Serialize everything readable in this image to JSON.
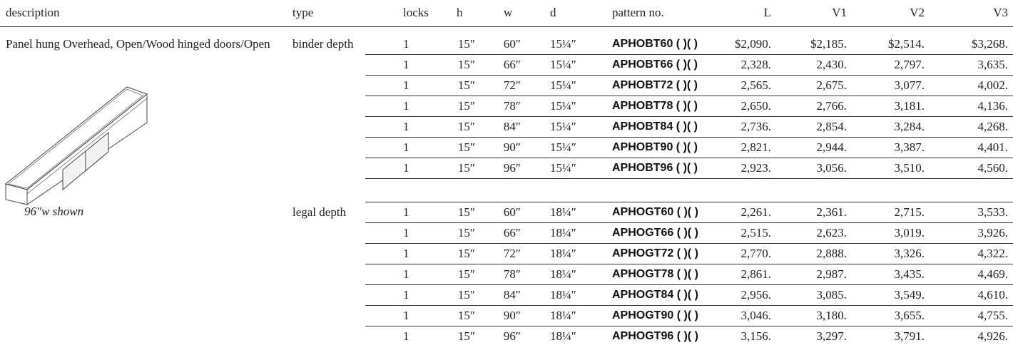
{
  "table": {
    "columns": [
      "description",
      "type",
      "locks",
      "h",
      "w",
      "d",
      "pattern no.",
      "L",
      "V1",
      "V2",
      "V3"
    ],
    "description": "Panel hung Overhead, Open/Wood hinged doors/Open",
    "caption": "96″w shown",
    "groups": [
      {
        "type": "binder depth",
        "rows": [
          [
            "1",
            "15″",
            "60″",
            "15¼″",
            "APHOBT60 ( )( )",
            "$2,090.",
            "$2,185.",
            "$2,514.",
            "$3,268."
          ],
          [
            "1",
            "15″",
            "66″",
            "15¼″",
            "APHOBT66 ( )( )",
            "2,328.",
            "2,430.",
            "2,797.",
            "3,635."
          ],
          [
            "1",
            "15″",
            "72″",
            "15¼″",
            "APHOBT72 ( )( )",
            "2,565.",
            "2,675.",
            "3,077.",
            "4,002."
          ],
          [
            "1",
            "15″",
            "78″",
            "15¼″",
            "APHOBT78 ( )( )",
            "2,650.",
            "2,766.",
            "3,181.",
            "4,136."
          ],
          [
            "1",
            "15″",
            "84″",
            "15¼″",
            "APHOBT84 ( )( )",
            "2,736.",
            "2,854.",
            "3,284.",
            "4,268."
          ],
          [
            "1",
            "15″",
            "90″",
            "15¼″",
            "APHOBT90 ( )( )",
            "2,821.",
            "2,944.",
            "3,387.",
            "4,401."
          ],
          [
            "1",
            "15″",
            "96″",
            "15¼″",
            "APHOBT96 ( )( )",
            "2,923.",
            "3,056.",
            "3,510.",
            "4,560."
          ]
        ]
      },
      {
        "type": "legal depth",
        "rows": [
          [
            "1",
            "15″",
            "60″",
            "18¼″",
            "APHOGT60 ( )( )",
            "2,261.",
            "2,361.",
            "2,715.",
            "3,533."
          ],
          [
            "1",
            "15″",
            "66″",
            "18¼″",
            "APHOGT66 ( )( )",
            "2,515.",
            "2,623.",
            "3,019.",
            "3,926."
          ],
          [
            "1",
            "15″",
            "72″",
            "18¼″",
            "APHOGT72 ( )( )",
            "2,770.",
            "2,888.",
            "3,326.",
            "4,322."
          ],
          [
            "1",
            "15″",
            "78″",
            "18¼″",
            "APHOGT78 ( )( )",
            "2,861.",
            "2,987.",
            "3,435.",
            "4,469."
          ],
          [
            "1",
            "15″",
            "84″",
            "18¼″",
            "APHOGT84 ( )( )",
            "2,956.",
            "3,085.",
            "3,549.",
            "4,610."
          ],
          [
            "1",
            "15″",
            "90″",
            "18¼″",
            "APHOGT90 ( )( )",
            "3,046.",
            "3,180.",
            "3,655.",
            "4,755."
          ],
          [
            "1",
            "15″",
            "96″",
            "18¼″",
            "APHOGT96 ( )( )",
            "3,156.",
            "3,297.",
            "3,791.",
            "4,926."
          ]
        ]
      }
    ]
  }
}
